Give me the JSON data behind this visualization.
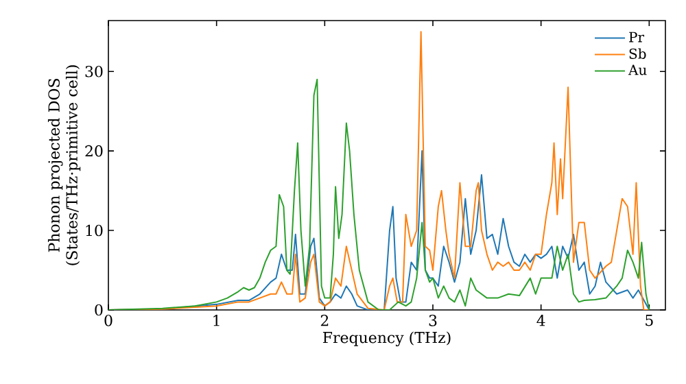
{
  "chart_data": {
    "type": "line",
    "xlabel": "Frequency (THz)",
    "ylabel": "Phonon projected DOS (States/THz·primitive cell)",
    "xlim": [
      0,
      5.15
    ],
    "ylim": [
      0,
      36.4
    ],
    "xticks": [
      0,
      1,
      2,
      3,
      4,
      5
    ],
    "yticks": [
      0,
      10,
      20,
      30
    ],
    "grid": false,
    "legend": "top right",
    "marker": "none",
    "line_style": "solid",
    "series": [
      {
        "name": "Pr",
        "color": "#1f77b4",
        "x": [
          0,
          0.5,
          1.0,
          1.2,
          1.3,
          1.4,
          1.5,
          1.55,
          1.6,
          1.65,
          1.7,
          1.73,
          1.77,
          1.82,
          1.87,
          1.9,
          1.95,
          2.0,
          2.05,
          2.1,
          2.15,
          2.2,
          2.25,
          2.3,
          2.4,
          2.55,
          2.6,
          2.63,
          2.66,
          2.7,
          2.75,
          2.8,
          2.85,
          2.9,
          2.93,
          2.97,
          3.0,
          3.05,
          3.1,
          3.15,
          3.2,
          3.25,
          3.3,
          3.35,
          3.4,
          3.45,
          3.5,
          3.55,
          3.6,
          3.65,
          3.7,
          3.75,
          3.8,
          3.85,
          3.9,
          3.95,
          4.0,
          4.05,
          4.1,
          4.15,
          4.2,
          4.25,
          4.3,
          4.35,
          4.4,
          4.45,
          4.5,
          4.55,
          4.6,
          4.7,
          4.8,
          4.85,
          4.9,
          5.0
        ],
        "values": [
          0,
          0.1,
          0.7,
          1.2,
          1.2,
          2,
          3.5,
          4,
          7,
          5,
          5,
          9.5,
          2,
          2,
          8,
          9,
          1.5,
          0.5,
          1,
          2,
          1.5,
          3,
          2,
          0.5,
          0,
          0,
          10,
          13,
          4,
          1,
          1,
          6,
          5,
          20,
          5,
          4,
          4,
          3,
          8,
          6,
          3.5,
          6,
          14,
          7,
          10,
          17,
          9,
          9.5,
          7,
          11.5,
          8,
          6,
          5.5,
          7,
          6,
          7,
          6.5,
          7,
          8,
          4,
          8,
          6.5,
          9.5,
          5,
          6,
          2,
          3,
          6,
          3.5,
          2,
          2.5,
          1.5,
          2.5,
          0
        ]
      },
      {
        "name": "Sb",
        "color": "#ff7f0e",
        "x": [
          0,
          0.5,
          1.0,
          1.2,
          1.3,
          1.4,
          1.5,
          1.55,
          1.6,
          1.65,
          1.7,
          1.73,
          1.77,
          1.82,
          1.87,
          1.9,
          1.95,
          2.0,
          2.05,
          2.1,
          2.15,
          2.2,
          2.25,
          2.3,
          2.4,
          2.55,
          2.6,
          2.63,
          2.67,
          2.72,
          2.75,
          2.8,
          2.85,
          2.89,
          2.93,
          2.97,
          3.0,
          3.05,
          3.08,
          3.12,
          3.15,
          3.2,
          3.25,
          3.3,
          3.35,
          3.4,
          3.42,
          3.45,
          3.5,
          3.55,
          3.6,
          3.65,
          3.7,
          3.75,
          3.8,
          3.85,
          3.9,
          3.95,
          4.0,
          4.05,
          4.1,
          4.12,
          4.15,
          4.18,
          4.2,
          4.25,
          4.3,
          4.35,
          4.4,
          4.45,
          4.5,
          4.6,
          4.65,
          4.7,
          4.75,
          4.8,
          4.85,
          4.88,
          4.92,
          4.95,
          5.0
        ],
        "values": [
          0,
          0.1,
          0.5,
          1.0,
          1.0,
          1.5,
          2,
          2,
          3.5,
          2,
          2,
          7,
          1,
          1.5,
          6,
          7,
          1,
          0.5,
          1,
          4,
          3,
          8,
          5,
          2,
          0.2,
          0,
          3,
          4,
          1,
          1,
          12,
          8,
          10,
          35,
          8,
          7.5,
          5,
          13,
          15,
          10,
          7,
          4,
          16,
          8,
          8,
          15,
          16,
          10,
          7,
          5,
          6,
          5.5,
          6,
          5,
          5,
          6,
          5,
          7,
          7,
          12,
          16,
          21,
          12,
          19,
          14,
          28,
          6,
          11,
          11,
          5,
          4,
          5.5,
          6,
          10,
          14,
          13,
          7,
          16,
          3,
          0,
          0
        ]
      },
      {
        "name": "Au",
        "color": "#2ca02c",
        "x": [
          0,
          0.5,
          0.8,
          1.0,
          1.1,
          1.2,
          1.25,
          1.3,
          1.35,
          1.4,
          1.45,
          1.5,
          1.55,
          1.58,
          1.62,
          1.65,
          1.68,
          1.72,
          1.75,
          1.78,
          1.82,
          1.86,
          1.9,
          1.93,
          1.97,
          2.0,
          2.05,
          2.08,
          2.1,
          2.13,
          2.16,
          2.2,
          2.23,
          2.27,
          2.32,
          2.4,
          2.5,
          2.6,
          2.68,
          2.75,
          2.8,
          2.85,
          2.9,
          2.93,
          2.97,
          3.0,
          3.05,
          3.1,
          3.15,
          3.2,
          3.25,
          3.3,
          3.35,
          3.4,
          3.5,
          3.6,
          3.7,
          3.8,
          3.9,
          3.95,
          4.0,
          4.1,
          4.15,
          4.2,
          4.25,
          4.3,
          4.35,
          4.4,
          4.5,
          4.6,
          4.7,
          4.75,
          4.8,
          4.85,
          4.9,
          4.93,
          4.97,
          5.0
        ],
        "values": [
          0,
          0.2,
          0.5,
          1.0,
          1.5,
          2.3,
          2.8,
          2.5,
          2.8,
          4,
          6,
          7.5,
          8,
          14.5,
          13,
          5,
          4.5,
          15,
          21,
          10,
          3,
          8,
          27,
          29,
          3,
          1.5,
          1.5,
          7,
          15.5,
          9,
          12,
          23.5,
          20,
          12,
          5,
          1,
          0,
          0,
          1,
          0.5,
          1,
          4,
          11,
          5,
          3.5,
          4,
          1.5,
          3,
          1.5,
          1,
          2.5,
          0.5,
          4,
          2.5,
          1.5,
          1.5,
          2,
          1.8,
          4,
          2,
          4,
          4,
          8,
          5,
          7,
          2,
          1,
          1.2,
          1.3,
          1.5,
          3,
          4,
          7.5,
          6,
          4,
          8.5,
          2,
          0
        ]
      }
    ]
  }
}
